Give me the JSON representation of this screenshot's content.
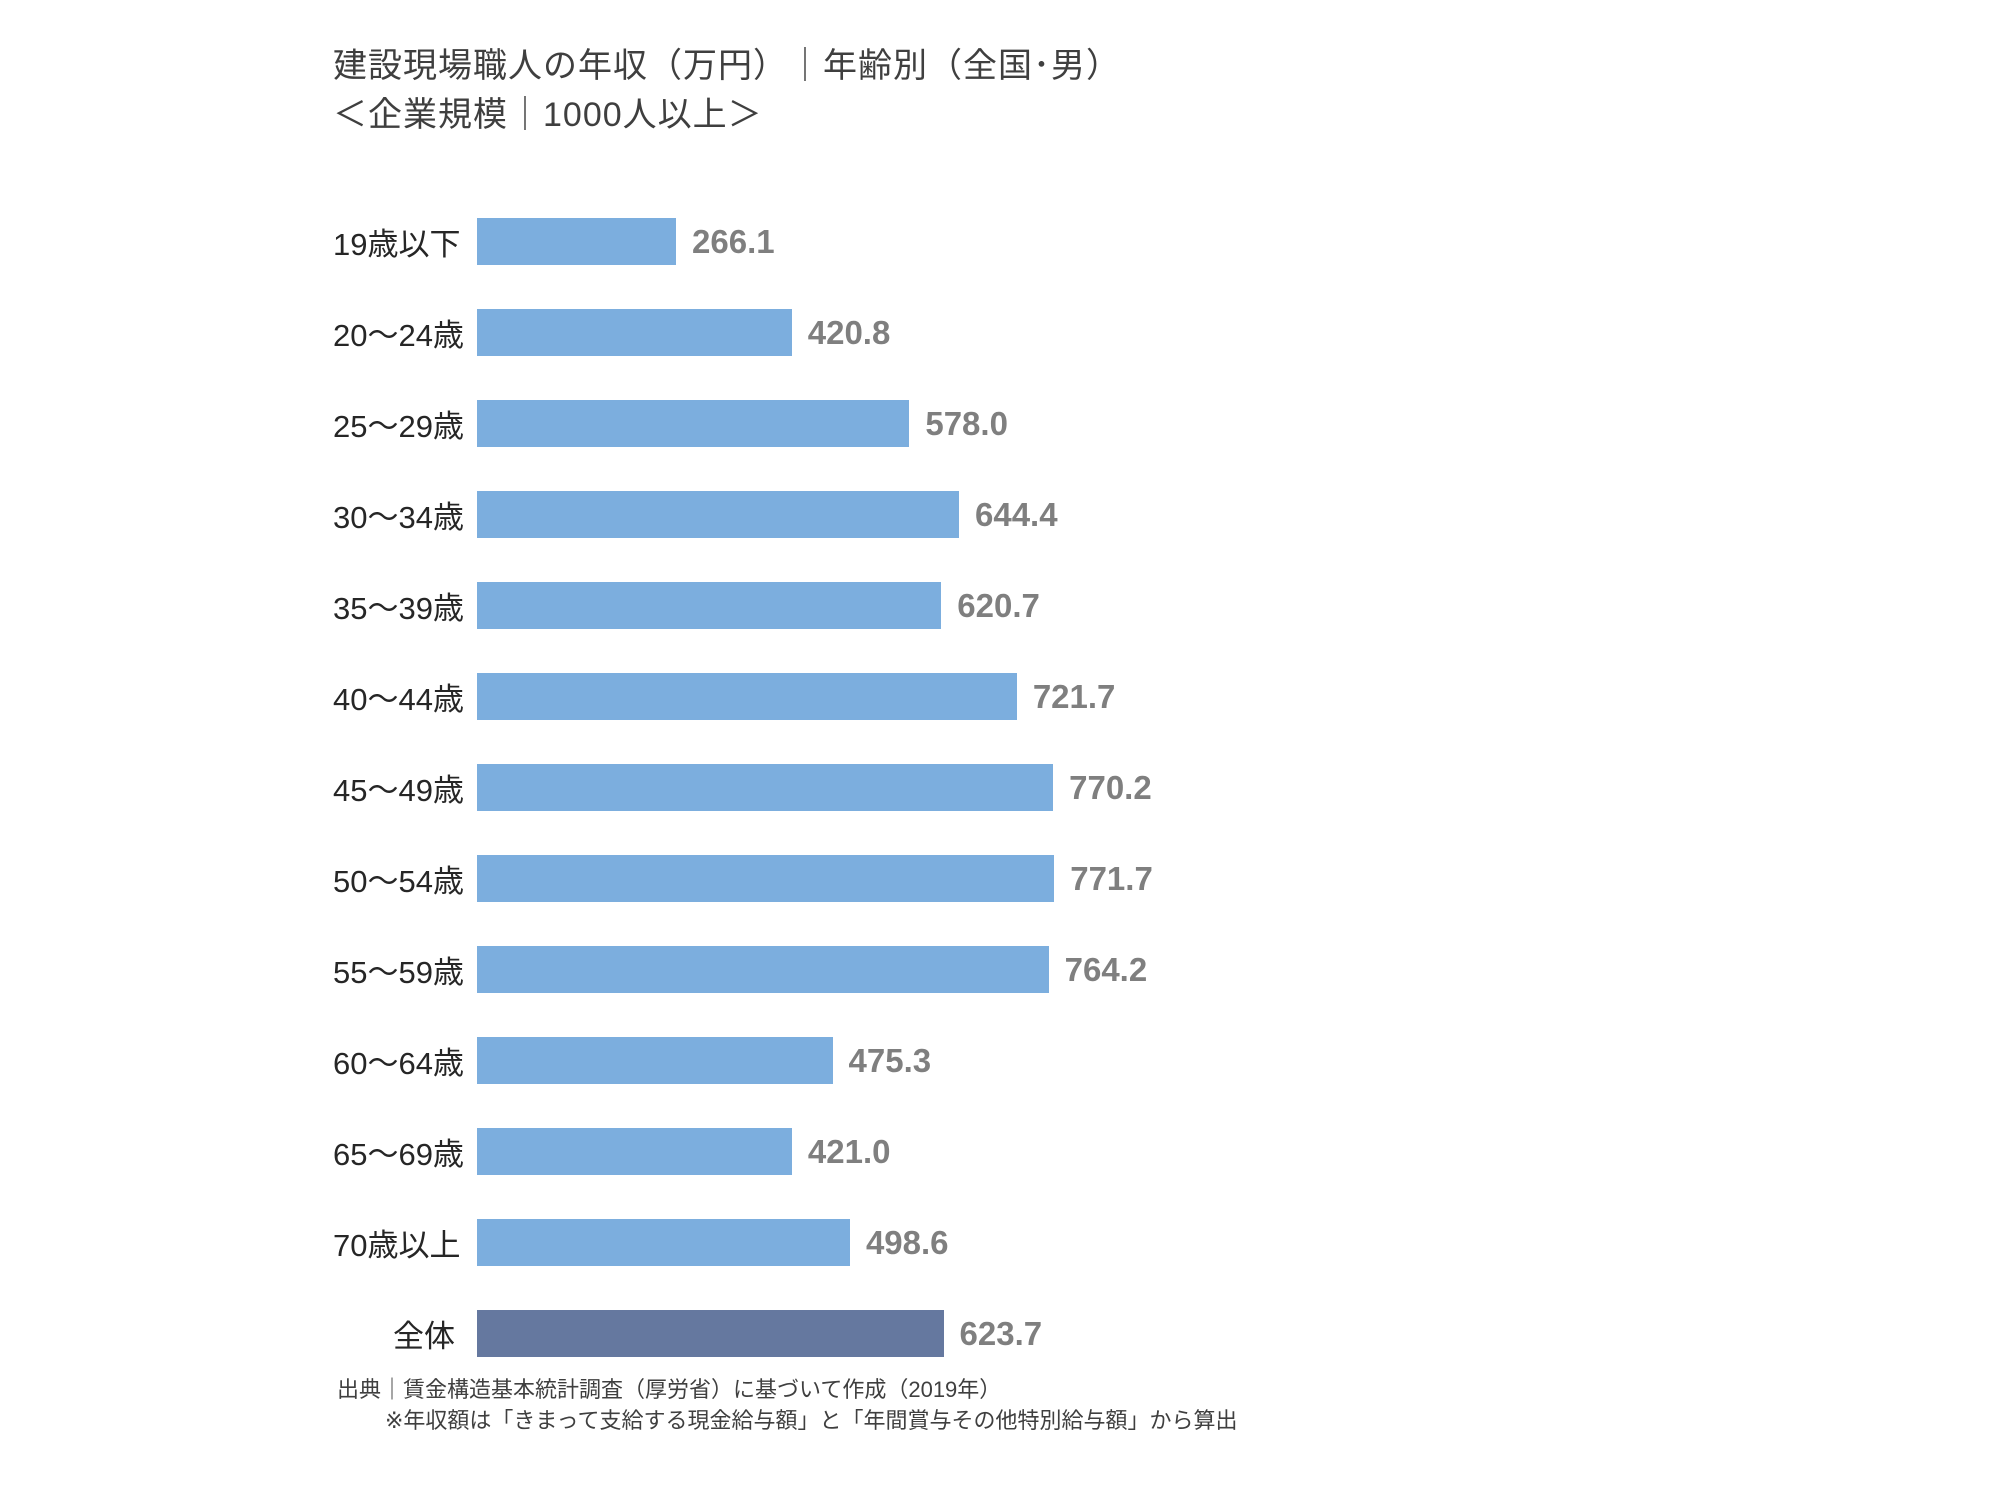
{
  "header": {
    "title": "建設現場職人の年収（万円）｜年齢別（全国･男）",
    "subtitle": "＜企業規模｜1000人以上＞"
  },
  "footer": {
    "source_line": "出典｜賃金構造基本統計調査（厚労省）に基づいて作成（2019年）",
    "note_line": "※年収額は「きまって支給する現金給与額」と「年間賞与その他特別給与額」から算出"
  },
  "chart_data": {
    "type": "bar",
    "orientation": "horizontal",
    "title": "建設現場職人の年収（万円）｜年齢別（全国･男）",
    "subtitle": "＜企業規模｜1000人以上＞",
    "unit": "万円",
    "categories": [
      "19歳以下",
      "20～24歳",
      "25～29歳",
      "30～34歳",
      "35～39歳",
      "40～44歳",
      "45～49歳",
      "50～54歳",
      "55～59歳",
      "60～64歳",
      "65～69歳",
      "70歳以上",
      "全体"
    ],
    "values": [
      266.1,
      420.8,
      578.0,
      644.4,
      620.7,
      721.7,
      770.2,
      771.7,
      764.2,
      475.3,
      421.0,
      498.6,
      623.7
    ],
    "value_labels": [
      "266.1",
      "420.8",
      "578.0",
      "644.4",
      "620.7",
      "721.7",
      "770.2",
      "771.7",
      "764.2",
      "475.3",
      "421.0",
      "498.6",
      "623.7"
    ],
    "total_row_index": 12,
    "xlim": [
      0,
      800
    ],
    "grid": false,
    "legend": "none",
    "value_labels_position": "outside-end",
    "colors": {
      "bar": "#7CAEDE",
      "total_bar": "#65789F",
      "value_text": "#7F7F7F",
      "category_text": "#262626",
      "title_text": "#3F3F3F"
    }
  }
}
